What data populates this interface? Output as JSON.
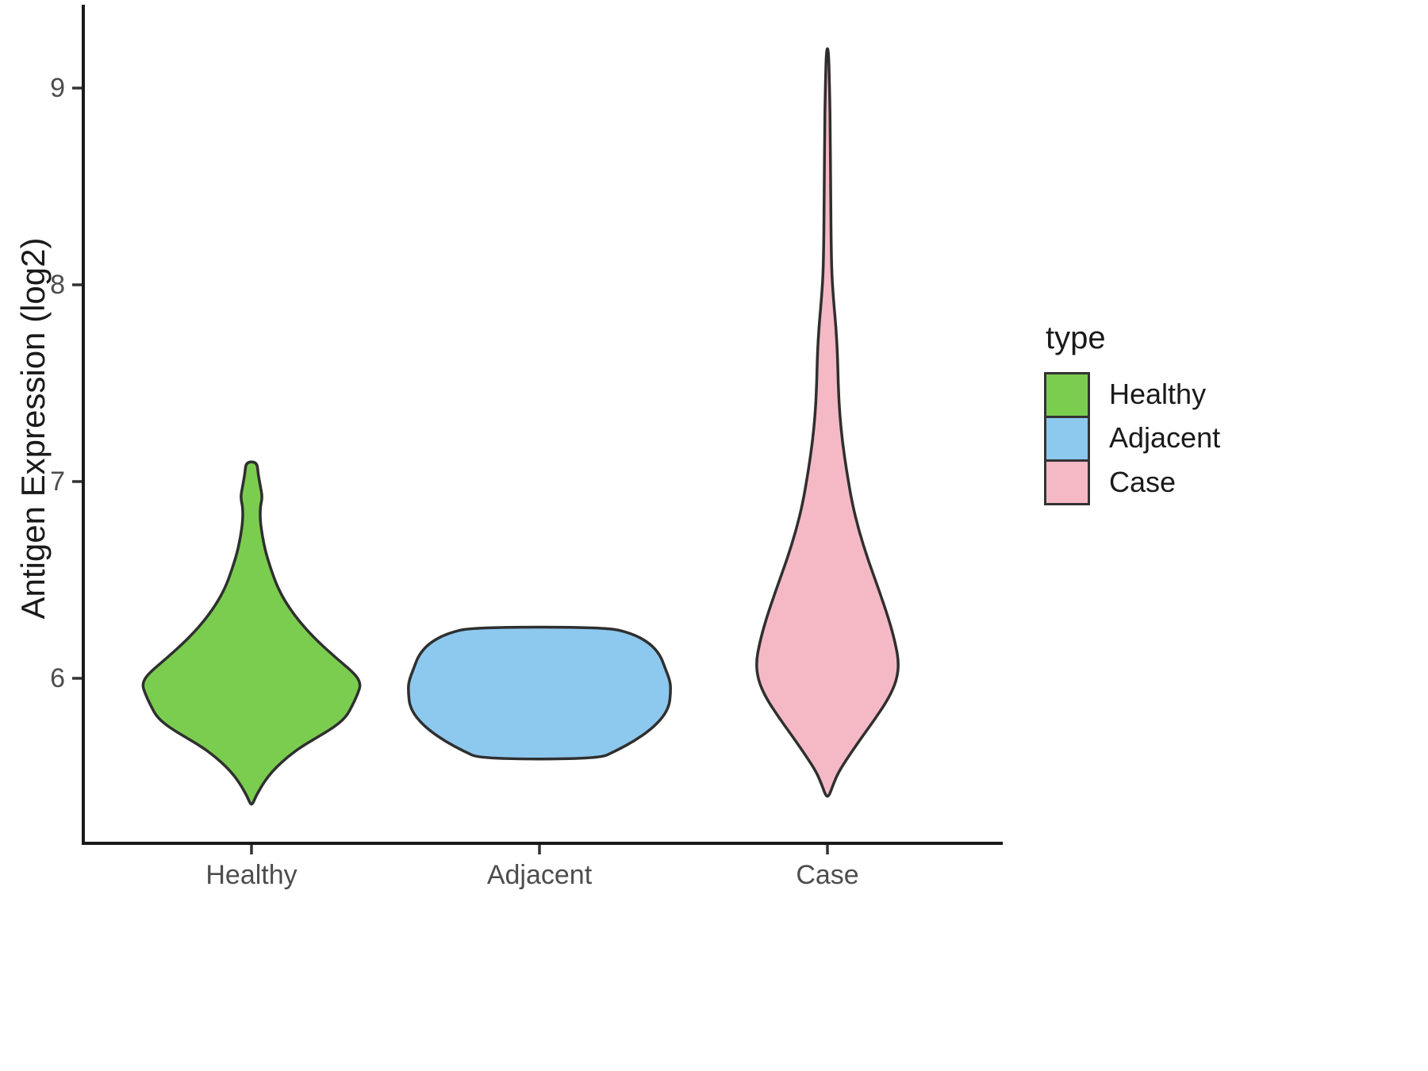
{
  "chart_data": {
    "type": "violin",
    "title": "",
    "xlabel": "",
    "ylabel": "Antigen Expression (log2)",
    "categories": [
      "Healthy",
      "Adjacent",
      "Case"
    ],
    "y_ticks": [
      6,
      7,
      8,
      9
    ],
    "ylim": [
      5.2,
      9.4
    ],
    "grid": false,
    "legend_position": "right",
    "legend": {
      "title": "type",
      "entries": [
        {
          "label": "Healthy",
          "color": "#7bcd4f"
        },
        {
          "label": "Adjacent",
          "color": "#8dc8ee"
        },
        {
          "label": "Case",
          "color": "#f5b9c5"
        }
      ]
    },
    "outline_color": "#2f2f2f",
    "series": [
      {
        "name": "Healthy",
        "color": "#7bcd4f",
        "max_halfwidth": 0.38,
        "value_range": [
          5.36,
          7.1
        ],
        "peak_value": 6.0,
        "profile": [
          [
            7.1,
            0.05
          ],
          [
            7.04,
            0.06
          ],
          [
            6.98,
            0.08
          ],
          [
            6.92,
            0.1
          ],
          [
            6.87,
            0.08
          ],
          [
            6.8,
            0.08
          ],
          [
            6.72,
            0.1
          ],
          [
            6.64,
            0.13
          ],
          [
            6.55,
            0.18
          ],
          [
            6.46,
            0.24
          ],
          [
            6.37,
            0.33
          ],
          [
            6.28,
            0.45
          ],
          [
            6.19,
            0.6
          ],
          [
            6.1,
            0.78
          ],
          [
            6.02,
            0.95
          ],
          [
            5.97,
            1.0
          ],
          [
            5.92,
            0.97
          ],
          [
            5.86,
            0.92
          ],
          [
            5.8,
            0.86
          ],
          [
            5.75,
            0.75
          ],
          [
            5.7,
            0.6
          ],
          [
            5.65,
            0.45
          ],
          [
            5.6,
            0.33
          ],
          [
            5.55,
            0.23
          ],
          [
            5.5,
            0.15
          ],
          [
            5.45,
            0.09
          ],
          [
            5.4,
            0.04
          ],
          [
            5.36,
            0.01
          ]
        ]
      },
      {
        "name": "Adjacent",
        "color": "#8dc8ee",
        "max_halfwidth": 0.455,
        "value_range": [
          5.59,
          6.26
        ],
        "peak_value": 5.95,
        "profile": [
          [
            6.26,
            0.5
          ],
          [
            6.23,
            0.7
          ],
          [
            6.18,
            0.84
          ],
          [
            6.12,
            0.92
          ],
          [
            6.05,
            0.96
          ],
          [
            5.98,
            1.0
          ],
          [
            5.92,
            1.0
          ],
          [
            5.86,
            0.99
          ],
          [
            5.8,
            0.94
          ],
          [
            5.74,
            0.85
          ],
          [
            5.68,
            0.72
          ],
          [
            5.63,
            0.58
          ],
          [
            5.59,
            0.45
          ]
        ]
      },
      {
        "name": "Case",
        "color": "#f5b9c5",
        "max_halfwidth": 0.248,
        "value_range": [
          5.4,
          9.2
        ],
        "peak_value": 6.08,
        "profile": [
          [
            9.2,
            0.015
          ],
          [
            9.0,
            0.03
          ],
          [
            8.75,
            0.04
          ],
          [
            8.5,
            0.045
          ],
          [
            8.25,
            0.05
          ],
          [
            8.05,
            0.06
          ],
          [
            7.9,
            0.09
          ],
          [
            7.78,
            0.12
          ],
          [
            7.65,
            0.14
          ],
          [
            7.5,
            0.15
          ],
          [
            7.35,
            0.17
          ],
          [
            7.2,
            0.21
          ],
          [
            7.05,
            0.27
          ],
          [
            6.9,
            0.34
          ],
          [
            6.75,
            0.44
          ],
          [
            6.6,
            0.57
          ],
          [
            6.45,
            0.72
          ],
          [
            6.3,
            0.86
          ],
          [
            6.18,
            0.95
          ],
          [
            6.08,
            1.0
          ],
          [
            5.99,
            0.97
          ],
          [
            5.9,
            0.86
          ],
          [
            5.8,
            0.68
          ],
          [
            5.7,
            0.48
          ],
          [
            5.6,
            0.29
          ],
          [
            5.52,
            0.15
          ],
          [
            5.45,
            0.07
          ],
          [
            5.4,
            0.02
          ]
        ]
      }
    ]
  }
}
